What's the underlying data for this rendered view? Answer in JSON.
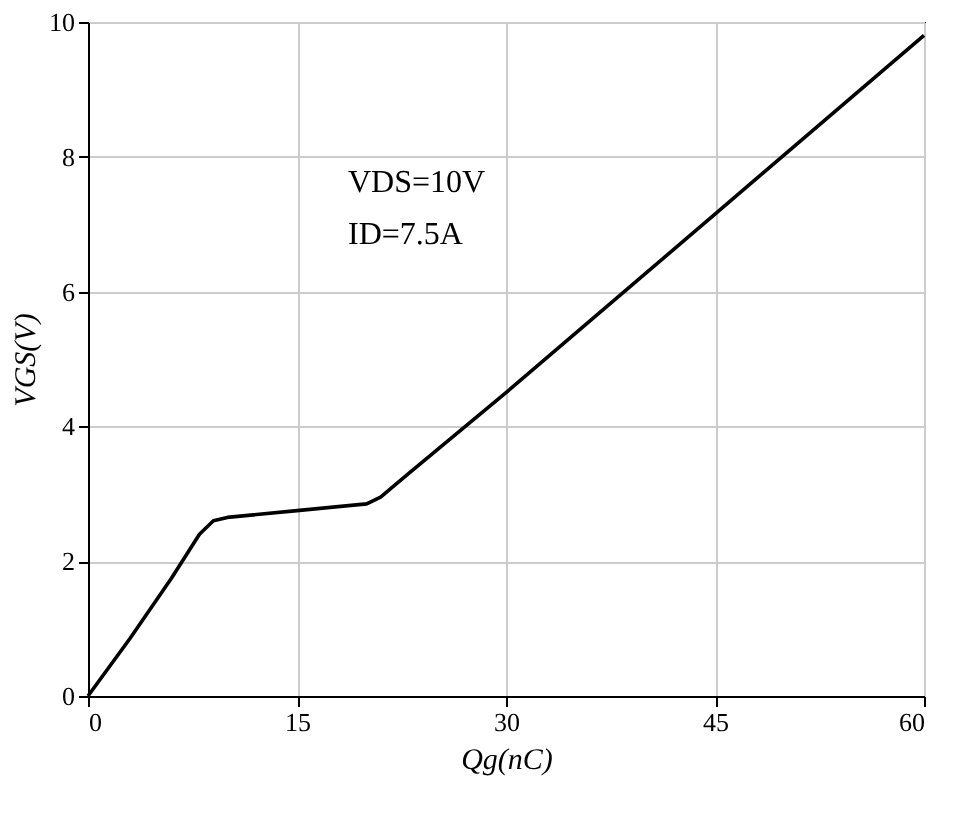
{
  "chart_data": {
    "type": "line",
    "xlabel": "Qg(nC)",
    "ylabel": "VGS(V)",
    "x": [
      0,
      3,
      6,
      8,
      9,
      10,
      15,
      20,
      21,
      23,
      30,
      45,
      60
    ],
    "series": [
      {
        "color": "#000000",
        "values": [
          0,
          0.85,
          1.75,
          2.4,
          2.6,
          2.65,
          2.75,
          2.85,
          2.95,
          3.3,
          4.5,
          7.15,
          9.8
        ]
      }
    ],
    "xlim": [
      0,
      60
    ],
    "xticks": [
      0,
      15,
      30,
      45,
      60
    ],
    "ylim": [
      0,
      10
    ],
    "yticks": [
      0,
      2,
      4,
      6,
      8,
      10
    ],
    "grid": true,
    "marker": "none",
    "line_style": "solid",
    "annotations": [
      "VDS=10V",
      "ID=7.5A"
    ]
  }
}
